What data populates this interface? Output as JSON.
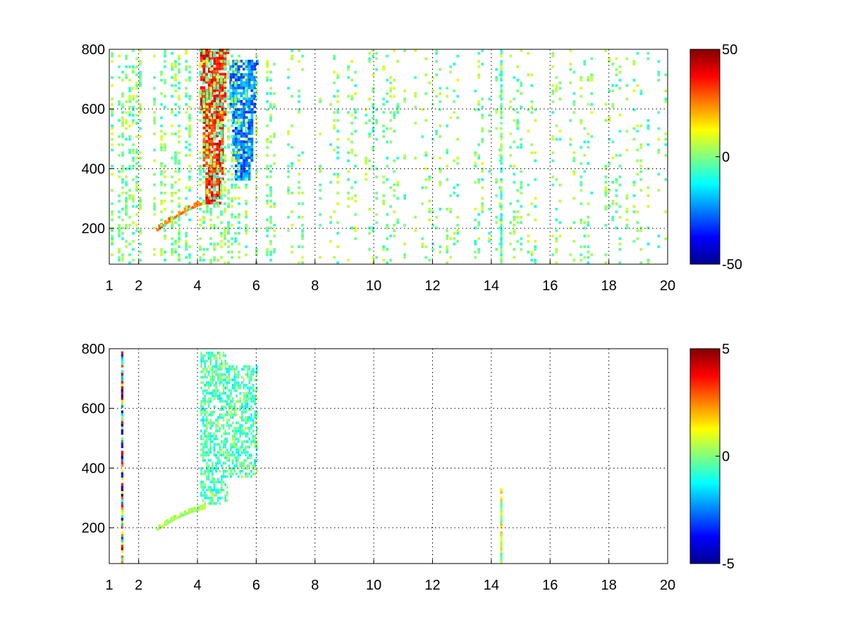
{
  "chart_data": [
    {
      "type": "heatmap",
      "title": "",
      "xlabel": "",
      "ylabel": "",
      "xlim": [
        1,
        20
      ],
      "ylim": [
        80,
        800
      ],
      "xticks": [
        "1",
        "2",
        "4",
        "6",
        "8",
        "10",
        "12",
        "14",
        "16",
        "18",
        "20"
      ],
      "xtick_values": [
        1,
        2,
        4,
        6,
        8,
        10,
        12,
        14,
        16,
        18,
        20
      ],
      "yticks": [
        "200",
        "400",
        "600",
        "800"
      ],
      "ytick_values": [
        200,
        400,
        600,
        800
      ],
      "grid": true,
      "colormap": "jet",
      "colorbar": {
        "min": -50,
        "max": 50,
        "ticks": [
          "50",
          "0",
          "-50"
        ],
        "tick_values": [
          50,
          0,
          -50
        ]
      },
      "features": [
        {
          "name": "positive plume",
          "x_range": [
            4.0,
            5.0
          ],
          "y_range": [
            280,
            800
          ],
          "value": 35
        },
        {
          "name": "negative plume",
          "x_range": [
            5.0,
            6.0
          ],
          "y_range": [
            360,
            760
          ],
          "value": -25
        },
        {
          "name": "lower arc",
          "from": [
            2.6,
            190
          ],
          "to": [
            4.2,
            280
          ],
          "value": 25
        },
        {
          "name": "sparse background",
          "x_range": [
            1,
            20
          ],
          "y_range": [
            80,
            800
          ],
          "value_range": [
            -10,
            10
          ]
        },
        {
          "name": "strong vertical streak",
          "x": 14.3,
          "value_range": [
            -15,
            10
          ]
        }
      ]
    },
    {
      "type": "heatmap",
      "title": "",
      "xlabel": "",
      "ylabel": "",
      "xlim": [
        1,
        20
      ],
      "ylim": [
        80,
        800
      ],
      "xticks": [
        "1",
        "2",
        "4",
        "6",
        "8",
        "10",
        "12",
        "14",
        "16",
        "18",
        "20"
      ],
      "xtick_values": [
        1,
        2,
        4,
        6,
        8,
        10,
        12,
        14,
        16,
        18,
        20
      ],
      "yticks": [
        "200",
        "400",
        "600",
        "800"
      ],
      "ytick_values": [
        200,
        400,
        600,
        800
      ],
      "grid": true,
      "colormap": "jet",
      "colorbar": {
        "min": -5,
        "max": 5,
        "ticks": [
          "5",
          "0",
          "-5"
        ],
        "tick_values": [
          5,
          0,
          -5
        ]
      },
      "features": [
        {
          "name": "main cluster",
          "x_range": [
            4.1,
            6.0
          ],
          "y_range": [
            250,
            790
          ],
          "value_range": [
            -1.5,
            0.5
          ]
        },
        {
          "name": "lower arc",
          "from": [
            2.6,
            190
          ],
          "to": [
            4.2,
            260
          ],
          "value": 0.3
        },
        {
          "name": "left edge streak",
          "x": 1.4,
          "y_range": [
            80,
            790
          ],
          "value_range": [
            -5,
            5
          ]
        },
        {
          "name": "vertical streak",
          "x": 14.3,
          "y_range": [
            80,
            330
          ],
          "value_range": [
            -1,
            2
          ]
        }
      ]
    }
  ]
}
